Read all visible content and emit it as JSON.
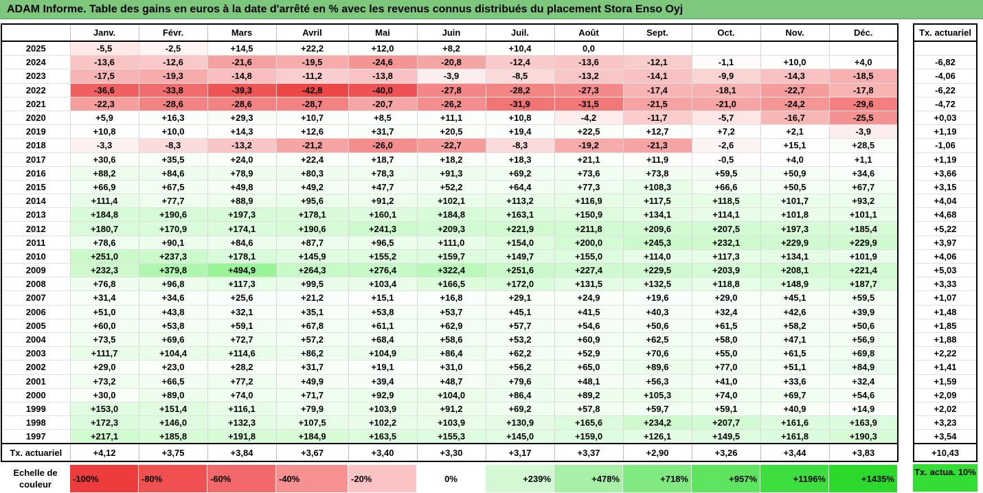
{
  "title": "ADAM Informe. Table des gains en euros à la date d'arrêté en % avec les revenus connus distribués du placement Stora Enso Oyj",
  "months": [
    "Janv.",
    "Févr.",
    "Mars",
    "Avril",
    "Mai",
    "Juin",
    "Juil.",
    "Août",
    "Sept.",
    "Oct.",
    "Nov.",
    "Déc."
  ],
  "tx_header": "Tx. actuariel",
  "rows": [
    {
      "year": "2025",
      "values": [
        "-5,5",
        "-2,5",
        "+14,5",
        "+22,2",
        "+12,0",
        "+8,2",
        "+10,4",
        "0,0",
        "",
        "",
        "",
        ""
      ],
      "tx": ""
    },
    {
      "year": "2024",
      "values": [
        "-13,6",
        "-12,6",
        "-21,6",
        "-19,5",
        "-24,6",
        "-20,8",
        "-12,4",
        "-13,6",
        "-12,1",
        "-1,1",
        "+10,0",
        "+4,0"
      ],
      "tx": "-6,82"
    },
    {
      "year": "2023",
      "values": [
        "-17,5",
        "-19,3",
        "-14,8",
        "-11,2",
        "-13,8",
        "-3,9",
        "-8,5",
        "-13,2",
        "-14,1",
        "-9,9",
        "-14,3",
        "-18,5"
      ],
      "tx": "-4,06"
    },
    {
      "year": "2022",
      "values": [
        "-36,6",
        "-33,8",
        "-39,3",
        "-42,8",
        "-40,0",
        "-27,8",
        "-28,2",
        "-27,3",
        "-17,4",
        "-18,1",
        "-22,7",
        "-17,8"
      ],
      "tx": "-6,22"
    },
    {
      "year": "2021",
      "values": [
        "-22,3",
        "-28,6",
        "-28,6",
        "-28,7",
        "-20,7",
        "-26,2",
        "-31,9",
        "-31,5",
        "-21,5",
        "-21,0",
        "-24,2",
        "-29,6"
      ],
      "tx": "-4,72"
    },
    {
      "year": "2020",
      "values": [
        "+5,9",
        "+16,3",
        "+29,3",
        "+10,7",
        "+8,5",
        "+11,1",
        "+10,8",
        "-4,2",
        "-11,7",
        "-5,7",
        "-16,7",
        "-25,5"
      ],
      "tx": "+0,03"
    },
    {
      "year": "2019",
      "values": [
        "+10,8",
        "+10,0",
        "+14,3",
        "+12,6",
        "+31,7",
        "+20,5",
        "+19,4",
        "+22,5",
        "+12,7",
        "+7,2",
        "+2,1",
        "-3,9"
      ],
      "tx": "+1,19"
    },
    {
      "year": "2018",
      "values": [
        "-3,3",
        "-8,3",
        "-13,2",
        "-21,2",
        "-26,0",
        "-22,7",
        "-8,3",
        "-19,2",
        "-21,3",
        "-2,6",
        "+15,1",
        "+28,5"
      ],
      "tx": "-1,06"
    },
    {
      "year": "2017",
      "values": [
        "+30,6",
        "+35,5",
        "+24,0",
        "+22,4",
        "+18,7",
        "+18,2",
        "+18,3",
        "+21,1",
        "+11,9",
        "-0,5",
        "+4,0",
        "+1,1"
      ],
      "tx": "+1,19"
    },
    {
      "year": "2016",
      "values": [
        "+88,2",
        "+84,6",
        "+78,9",
        "+80,3",
        "+78,3",
        "+91,3",
        "+69,2",
        "+73,6",
        "+73,8",
        "+59,5",
        "+50,9",
        "+34,6"
      ],
      "tx": "+3,66"
    },
    {
      "year": "2015",
      "values": [
        "+66,9",
        "+67,5",
        "+49,8",
        "+49,2",
        "+47,7",
        "+52,2",
        "+64,4",
        "+77,3",
        "+108,3",
        "+66,6",
        "+50,5",
        "+67,7"
      ],
      "tx": "+3,15"
    },
    {
      "year": "2014",
      "values": [
        "+111,4",
        "+77,7",
        "+88,9",
        "+95,6",
        "+91,2",
        "+102,1",
        "+113,2",
        "+116,9",
        "+117,5",
        "+118,5",
        "+101,7",
        "+93,2"
      ],
      "tx": "+4,04"
    },
    {
      "year": "2013",
      "values": [
        "+184,8",
        "+190,6",
        "+197,3",
        "+178,1",
        "+160,1",
        "+184,8",
        "+163,1",
        "+150,9",
        "+134,1",
        "+114,1",
        "+101,8",
        "+101,1"
      ],
      "tx": "+4,68"
    },
    {
      "year": "2012",
      "values": [
        "+180,7",
        "+170,9",
        "+174,1",
        "+190,6",
        "+241,3",
        "+209,3",
        "+221,9",
        "+211,8",
        "+209,6",
        "+207,5",
        "+197,3",
        "+185,4"
      ],
      "tx": "+5,22"
    },
    {
      "year": "2011",
      "values": [
        "+78,6",
        "+90,1",
        "+84,6",
        "+87,7",
        "+96,5",
        "+111,0",
        "+154,0",
        "+200,0",
        "+245,3",
        "+232,1",
        "+229,9",
        "+229,9"
      ],
      "tx": "+3,97"
    },
    {
      "year": "2010",
      "values": [
        "+251,0",
        "+237,3",
        "+178,1",
        "+145,9",
        "+155,2",
        "+159,7",
        "+149,7",
        "+155,0",
        "+114,0",
        "+117,3",
        "+134,1",
        "+101,9"
      ],
      "tx": "+4,06"
    },
    {
      "year": "2009",
      "values": [
        "+232,3",
        "+379,8",
        "+494,9",
        "+264,3",
        "+276,4",
        "+322,4",
        "+251,6",
        "+227,4",
        "+229,5",
        "+203,9",
        "+208,1",
        "+221,4"
      ],
      "tx": "+5,03"
    },
    {
      "year": "2008",
      "values": [
        "+76,8",
        "+96,8",
        "+117,3",
        "+99,5",
        "+103,4",
        "+166,5",
        "+172,0",
        "+131,5",
        "+132,5",
        "+118,8",
        "+148,9",
        "+187,7"
      ],
      "tx": "+3,33"
    },
    {
      "year": "2007",
      "values": [
        "+31,4",
        "+34,6",
        "+25,6",
        "+21,2",
        "+15,1",
        "+16,8",
        "+29,1",
        "+24,9",
        "+19,6",
        "+29,0",
        "+45,1",
        "+59,5"
      ],
      "tx": "+1,07"
    },
    {
      "year": "2006",
      "values": [
        "+51,0",
        "+43,8",
        "+32,1",
        "+35,1",
        "+53,8",
        "+53,7",
        "+45,1",
        "+41,5",
        "+40,3",
        "+32,4",
        "+42,6",
        "+39,9"
      ],
      "tx": "+1,48"
    },
    {
      "year": "2005",
      "values": [
        "+60,0",
        "+53,8",
        "+59,1",
        "+67,8",
        "+61,1",
        "+62,9",
        "+57,7",
        "+54,6",
        "+50,6",
        "+61,5",
        "+58,2",
        "+50,6"
      ],
      "tx": "+1,85"
    },
    {
      "year": "2004",
      "values": [
        "+73,5",
        "+69,6",
        "+72,7",
        "+57,2",
        "+68,4",
        "+58,6",
        "+53,2",
        "+60,9",
        "+62,5",
        "+58,0",
        "+47,1",
        "+56,9"
      ],
      "tx": "+1,88"
    },
    {
      "year": "2003",
      "values": [
        "+111,7",
        "+104,4",
        "+114,6",
        "+86,2",
        "+104,9",
        "+86,4",
        "+62,2",
        "+52,9",
        "+70,6",
        "+55,0",
        "+61,5",
        "+69,8"
      ],
      "tx": "+2,22"
    },
    {
      "year": "2002",
      "values": [
        "+29,0",
        "+23,0",
        "+28,2",
        "+31,7",
        "+19,1",
        "+31,0",
        "+56,2",
        "+65,0",
        "+89,6",
        "+77,0",
        "+51,1",
        "+84,9"
      ],
      "tx": "+1,41"
    },
    {
      "year": "2001",
      "values": [
        "+73,2",
        "+66,5",
        "+77,2",
        "+49,9",
        "+39,4",
        "+48,7",
        "+79,6",
        "+48,1",
        "+56,3",
        "+41,0",
        "+33,6",
        "+32,4"
      ],
      "tx": "+1,59"
    },
    {
      "year": "2000",
      "values": [
        "+30,0",
        "+89,0",
        "+74,0",
        "+71,7",
        "+92,9",
        "+104,0",
        "+86,4",
        "+89,2",
        "+105,3",
        "+74,0",
        "+69,7",
        "+54,6"
      ],
      "tx": "+2,09"
    },
    {
      "year": "1999",
      "values": [
        "+153,0",
        "+151,4",
        "+116,1",
        "+79,9",
        "+103,9",
        "+91,2",
        "+69,2",
        "+57,8",
        "+59,7",
        "+59,1",
        "+40,9",
        "+14,9"
      ],
      "tx": "+2,02"
    },
    {
      "year": "1998",
      "values": [
        "+172,3",
        "+146,0",
        "+132,3",
        "+107,5",
        "+102,2",
        "+103,9",
        "+130,9",
        "+165,6",
        "+234,2",
        "+207,7",
        "+161,6",
        "+163,9"
      ],
      "tx": "+3,23"
    },
    {
      "year": "1997",
      "values": [
        "+217,1",
        "+185,8",
        "+191,8",
        "+184,9",
        "+163,5",
        "+155,3",
        "+145,0",
        "+159,0",
        "+126,1",
        "+149,5",
        "+161,8",
        "+190,3"
      ],
      "tx": "+3,54"
    }
  ],
  "footer": {
    "label": "Tx. actuariel",
    "values": [
      "+4,12",
      "+3,75",
      "+3,84",
      "+3,67",
      "+3,40",
      "+3,30",
      "+3,17",
      "+3,37",
      "+2,90",
      "+3,26",
      "+3,44",
      "+3,83"
    ],
    "tx": "+10,43"
  },
  "scale": {
    "label": "Echelle de couleur",
    "items": [
      {
        "label": "-100%",
        "color": "#ee3b3b"
      },
      {
        "label": "-80%",
        "color": "#f15050"
      },
      {
        "label": "-60%",
        "color": "#f36868"
      },
      {
        "label": "-40%",
        "color": "#f79090"
      },
      {
        "label": "-20%",
        "color": "#fbc3c3"
      },
      {
        "label": "0%",
        "color": "#ffffff"
      },
      {
        "label": "+239%",
        "color": "#d4f8d4"
      },
      {
        "label": "+478%",
        "color": "#a8f0a8"
      },
      {
        "label": "+718%",
        "color": "#80ea80"
      },
      {
        "label": "+957%",
        "color": "#5ee45e"
      },
      {
        "label": "+1196%",
        "color": "#3ede3e"
      },
      {
        "label": "+1435%",
        "color": "#2cd82c"
      }
    ],
    "tx_label": "Tx. actua. 10%",
    "tx_color": "#33dd33"
  }
}
